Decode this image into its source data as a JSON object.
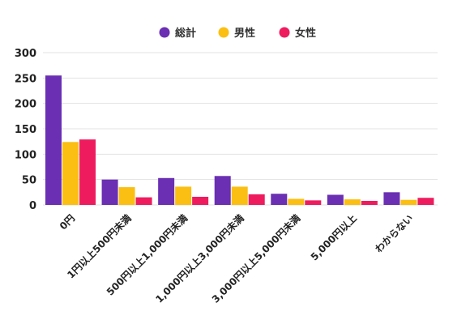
{
  "chart_data": {
    "type": "bar",
    "categories": [
      "0円",
      "1円以上500円未満",
      "500円以上1,000円未満",
      "1,000円以上3,000円未満",
      "3,000円以上5,000円未満",
      "5,000円以上",
      "わからない"
    ],
    "series": [
      {
        "name": "総計",
        "color": "#6a2fb3",
        "values": [
          255,
          50,
          53,
          57,
          22,
          20,
          25
        ]
      },
      {
        "name": "男性",
        "color": "#fbbf13",
        "values": [
          124,
          35,
          36,
          36,
          12,
          11,
          10
        ]
      },
      {
        "name": "女性",
        "color": "#ee1c5f",
        "values": [
          129,
          15,
          16,
          21,
          9,
          8,
          14
        ]
      }
    ],
    "ylim": [
      0,
      300
    ],
    "yticks": [
      0,
      50,
      100,
      150,
      200,
      250,
      300
    ],
    "title": "",
    "xlabel": "",
    "ylabel": "",
    "grid": "horizontal",
    "legend_position": "top-center"
  }
}
